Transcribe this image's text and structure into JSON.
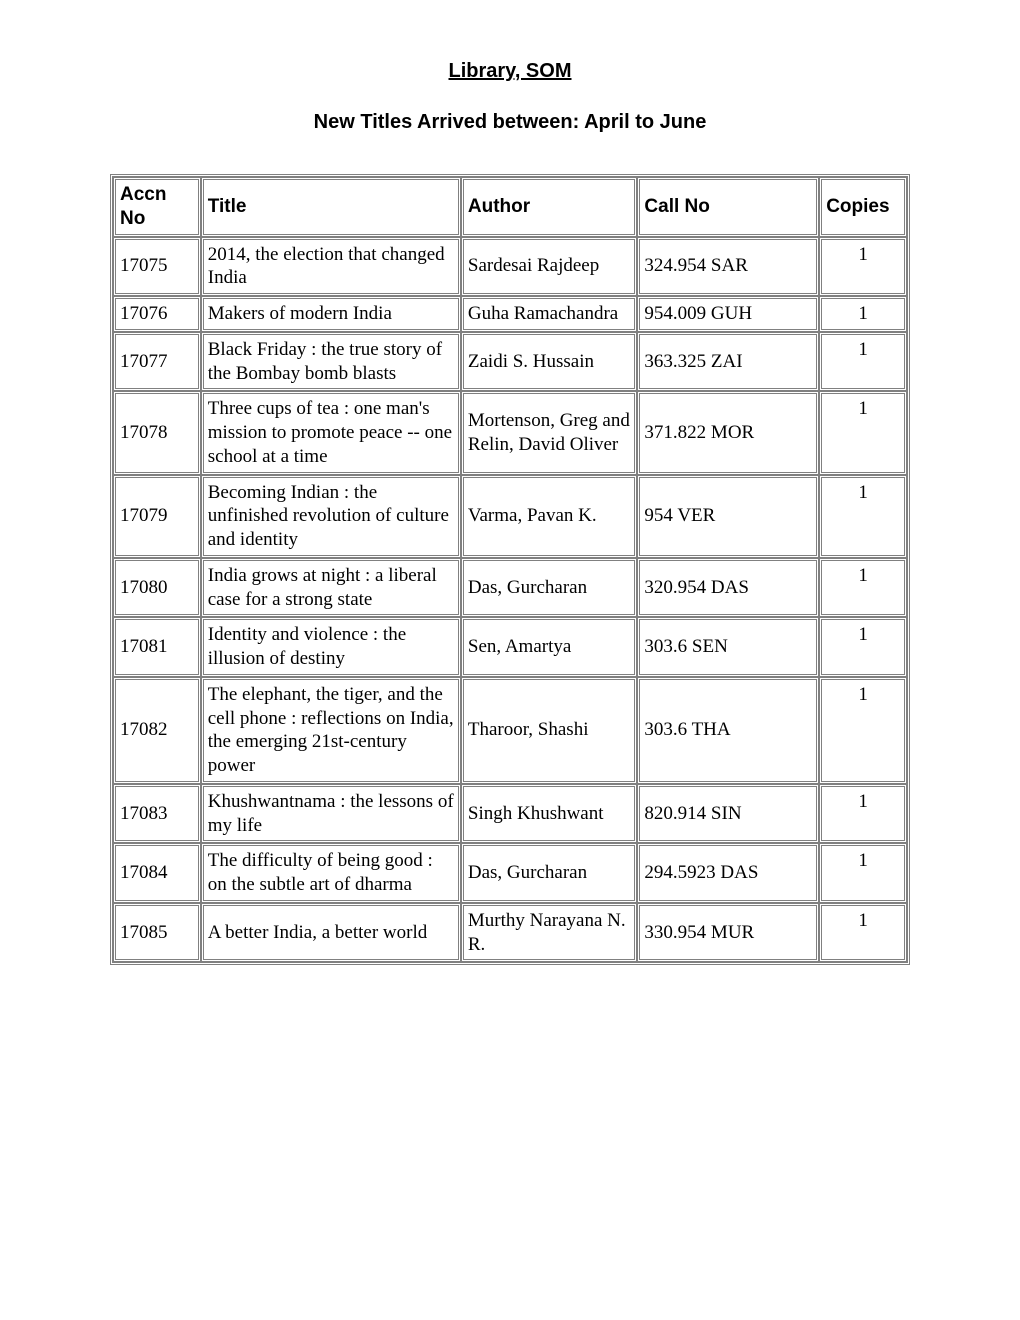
{
  "header": {
    "library_name": "Library, SOM",
    "subtitle": "New Titles Arrived between: April to June"
  },
  "table": {
    "columns": [
      "Accn No",
      "Title",
      "Author",
      "Call No",
      "Copies"
    ],
    "rows": [
      {
        "accn": "17075",
        "title": "2014, the election that changed India",
        "author": "Sardesai Rajdeep",
        "callno": "324.954 SAR",
        "copies": "1"
      },
      {
        "accn": "17076",
        "title": "Makers of modern India",
        "author": "Guha Ramachandra",
        "callno": "954.009 GUH",
        "copies": "1"
      },
      {
        "accn": "17077",
        "title": "Black Friday : the true story of the Bombay bomb blasts",
        "author": "Zaidi S. Hussain",
        "callno": "363.325 ZAI",
        "copies": "1"
      },
      {
        "accn": "17078",
        "title": "Three cups of tea : one man's mission to promote peace -- one school at a time",
        "author": "Mortenson, Greg and Relin, David Oliver",
        "callno": "371.822 MOR",
        "copies": "1"
      },
      {
        "accn": "17079",
        "title": "Becoming Indian : the unfinished revolution of culture and identity",
        "author": "Varma, Pavan K.",
        "callno": "954 VER",
        "copies": "1"
      },
      {
        "accn": "17080",
        "title": "India grows at night : a liberal case for a strong state",
        "author": "Das, Gurcharan",
        "callno": "320.954 DAS",
        "copies": "1"
      },
      {
        "accn": "17081",
        "title": "Identity and violence : the illusion of destiny",
        "author": "Sen, Amartya",
        "callno": "303.6 SEN",
        "copies": "1"
      },
      {
        "accn": "17082",
        "title": "The elephant, the tiger, and the cell phone : reflections on India, the emerging 21st-century power",
        "author": "Tharoor, Shashi",
        "callno": "303.6 THA",
        "copies": "1"
      },
      {
        "accn": "17083",
        "title": "Khushwantnama : the lessons of my life",
        "author": "Singh Khushwant",
        "callno": "820.914 SIN",
        "copies": "1"
      },
      {
        "accn": "17084",
        "title": "The difficulty of being good : on the subtle art of dharma",
        "author": "Das, Gurcharan",
        "callno": "294.5923 DAS",
        "copies": "1"
      },
      {
        "accn": "17085",
        "title": "A better India, a better world",
        "author": "Murthy Narayana N. R.",
        "callno": "330.954 MUR",
        "copies": "1"
      }
    ]
  }
}
